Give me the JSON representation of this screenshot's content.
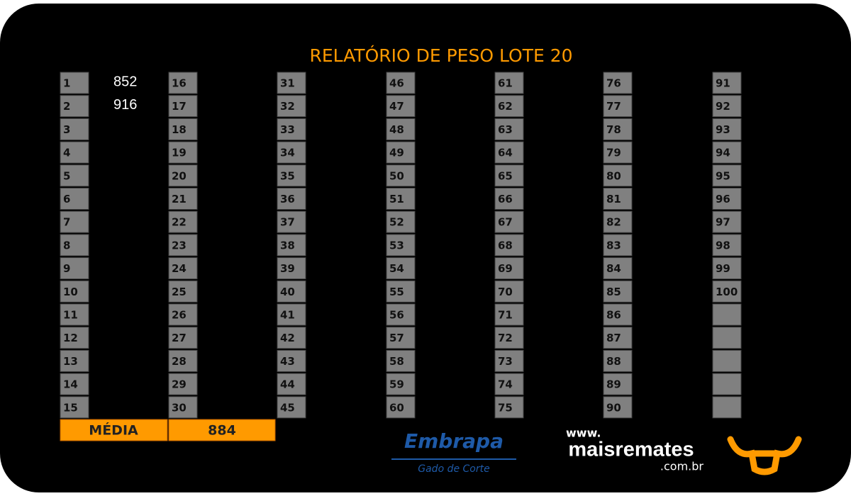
{
  "title": "RELATÓRIO DE PESO LOTE 20",
  "cells": [
    {
      "number": 1,
      "weight": 852
    },
    {
      "number": 2,
      "weight": 916
    },
    {
      "number": 3
    },
    {
      "number": 4
    },
    {
      "number": 5
    },
    {
      "number": 6
    },
    {
      "number": 7
    },
    {
      "number": 8
    },
    {
      "number": 9
    },
    {
      "number": 10
    },
    {
      "number": 11
    },
    {
      "number": 12
    },
    {
      "number": 13
    },
    {
      "number": 14
    },
    {
      "number": 15
    },
    {
      "number": 16
    },
    {
      "number": 17
    },
    {
      "number": 18
    },
    {
      "number": 19
    },
    {
      "number": 20
    },
    {
      "number": 21
    },
    {
      "number": 22
    },
    {
      "number": 23
    },
    {
      "number": 24
    },
    {
      "number": 25
    },
    {
      "number": 26
    },
    {
      "number": 27
    },
    {
      "number": 28
    },
    {
      "number": 29
    },
    {
      "number": 30
    },
    {
      "number": 31
    },
    {
      "number": 32
    },
    {
      "number": 33
    },
    {
      "number": 34
    },
    {
      "number": 35
    },
    {
      "number": 36
    },
    {
      "number": 37
    },
    {
      "number": 38
    },
    {
      "number": 39
    },
    {
      "number": 40
    },
    {
      "number": 41
    },
    {
      "number": 42
    },
    {
      "number": 43
    },
    {
      "number": 44
    },
    {
      "number": 45
    },
    {
      "number": 46
    },
    {
      "number": 47
    },
    {
      "number": 48
    },
    {
      "number": 49
    },
    {
      "number": 50
    },
    {
      "number": 51
    },
    {
      "number": 52
    },
    {
      "number": 53
    },
    {
      "number": 54
    },
    {
      "number": 55
    },
    {
      "number": 56
    },
    {
      "number": 57
    },
    {
      "number": 58
    },
    {
      "number": 59
    },
    {
      "number": 60
    },
    {
      "number": 61
    },
    {
      "number": 62
    },
    {
      "number": 63
    },
    {
      "number": 64
    },
    {
      "number": 65
    },
    {
      "number": 66
    },
    {
      "number": 67
    },
    {
      "number": 68
    },
    {
      "number": 69
    },
    {
      "number": 70
    },
    {
      "number": 71
    },
    {
      "number": 72
    },
    {
      "number": 73
    },
    {
      "number": 74
    },
    {
      "number": 75
    },
    {
      "number": 76
    },
    {
      "number": 77
    },
    {
      "number": 78
    },
    {
      "number": 79
    },
    {
      "number": 80
    },
    {
      "number": 81
    },
    {
      "number": 82
    },
    {
      "number": 83
    },
    {
      "number": 84
    },
    {
      "number": 85
    },
    {
      "number": 86
    },
    {
      "number": 87
    },
    {
      "number": 88
    },
    {
      "number": 89
    },
    {
      "number": 90
    },
    {
      "number": 91
    },
    {
      "number": 92
    },
    {
      "number": 93
    },
    {
      "number": 94
    },
    {
      "number": 95
    },
    {
      "number": 96
    },
    {
      "number": 97
    },
    {
      "number": 98
    },
    {
      "number": 99
    },
    {
      "number": 100
    }
  ],
  "average": {
    "label": "MÉDIA",
    "value": 884
  },
  "logos": {
    "embrapa": "Embrapa",
    "embrapa_sub": "Gado de Corte",
    "site_prefix": "www.",
    "site_name": "maisremates",
    "site_suffix": ".com.br"
  }
}
